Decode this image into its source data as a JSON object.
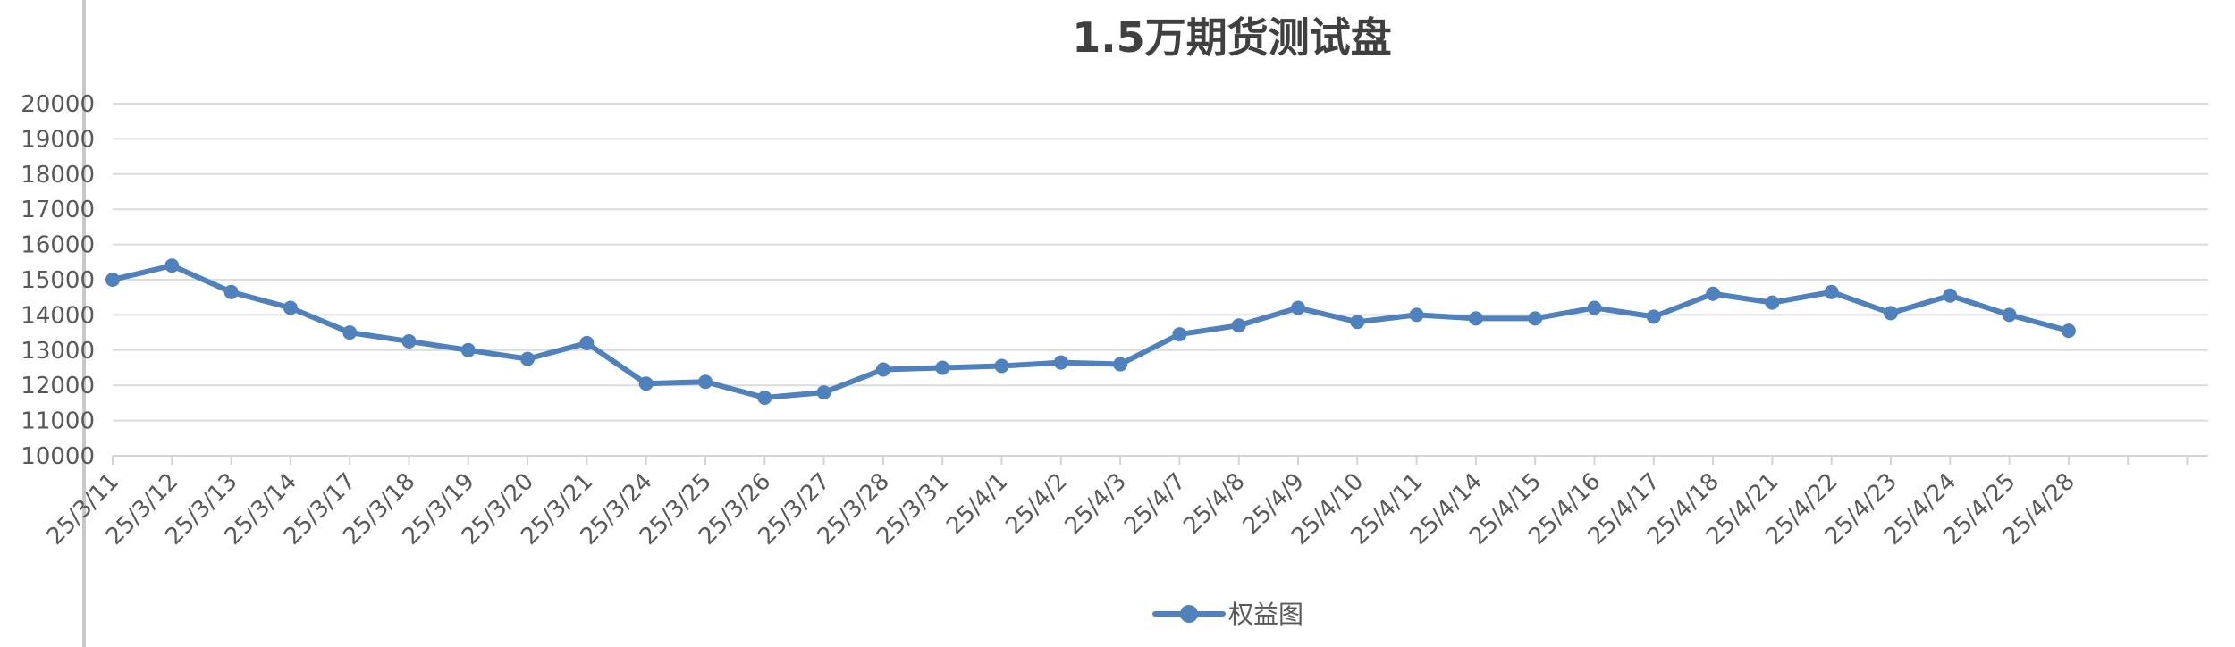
{
  "chart_data": {
    "type": "line",
    "title": "1.5万期货测试盘",
    "xlabel": "",
    "ylabel": "",
    "ylim": [
      10000,
      20000
    ],
    "yticks": [
      10000,
      11000,
      12000,
      13000,
      14000,
      15000,
      16000,
      17000,
      18000,
      19000,
      20000
    ],
    "grid": true,
    "legend_position": "bottom",
    "categories": [
      "25/3/11",
      "25/3/12",
      "25/3/13",
      "25/3/14",
      "25/3/17",
      "25/3/18",
      "25/3/19",
      "25/3/20",
      "25/3/21",
      "25/3/24",
      "25/3/25",
      "25/3/26",
      "25/3/27",
      "25/3/28",
      "25/3/31",
      "25/4/1",
      "25/4/2",
      "25/4/3",
      "25/4/7",
      "25/4/8",
      "25/4/9",
      "25/4/10",
      "25/4/11",
      "25/4/14",
      "25/4/15",
      "25/4/16",
      "25/4/17",
      "25/4/18",
      "25/4/21",
      "25/4/22",
      "25/4/23",
      "25/4/24",
      "25/4/25",
      "25/4/28"
    ],
    "series": [
      {
        "name": "权益图",
        "color": "#4f81bd",
        "values": [
          15000,
          15400,
          14650,
          14200,
          13500,
          13250,
          13000,
          12750,
          13200,
          12050,
          12100,
          11650,
          11800,
          12450,
          12500,
          12550,
          12650,
          12600,
          13450,
          13700,
          14200,
          13800,
          14000,
          13900,
          13900,
          14200,
          13950,
          14600,
          14350,
          14650,
          14050,
          14550,
          14000,
          13550
        ]
      }
    ]
  }
}
